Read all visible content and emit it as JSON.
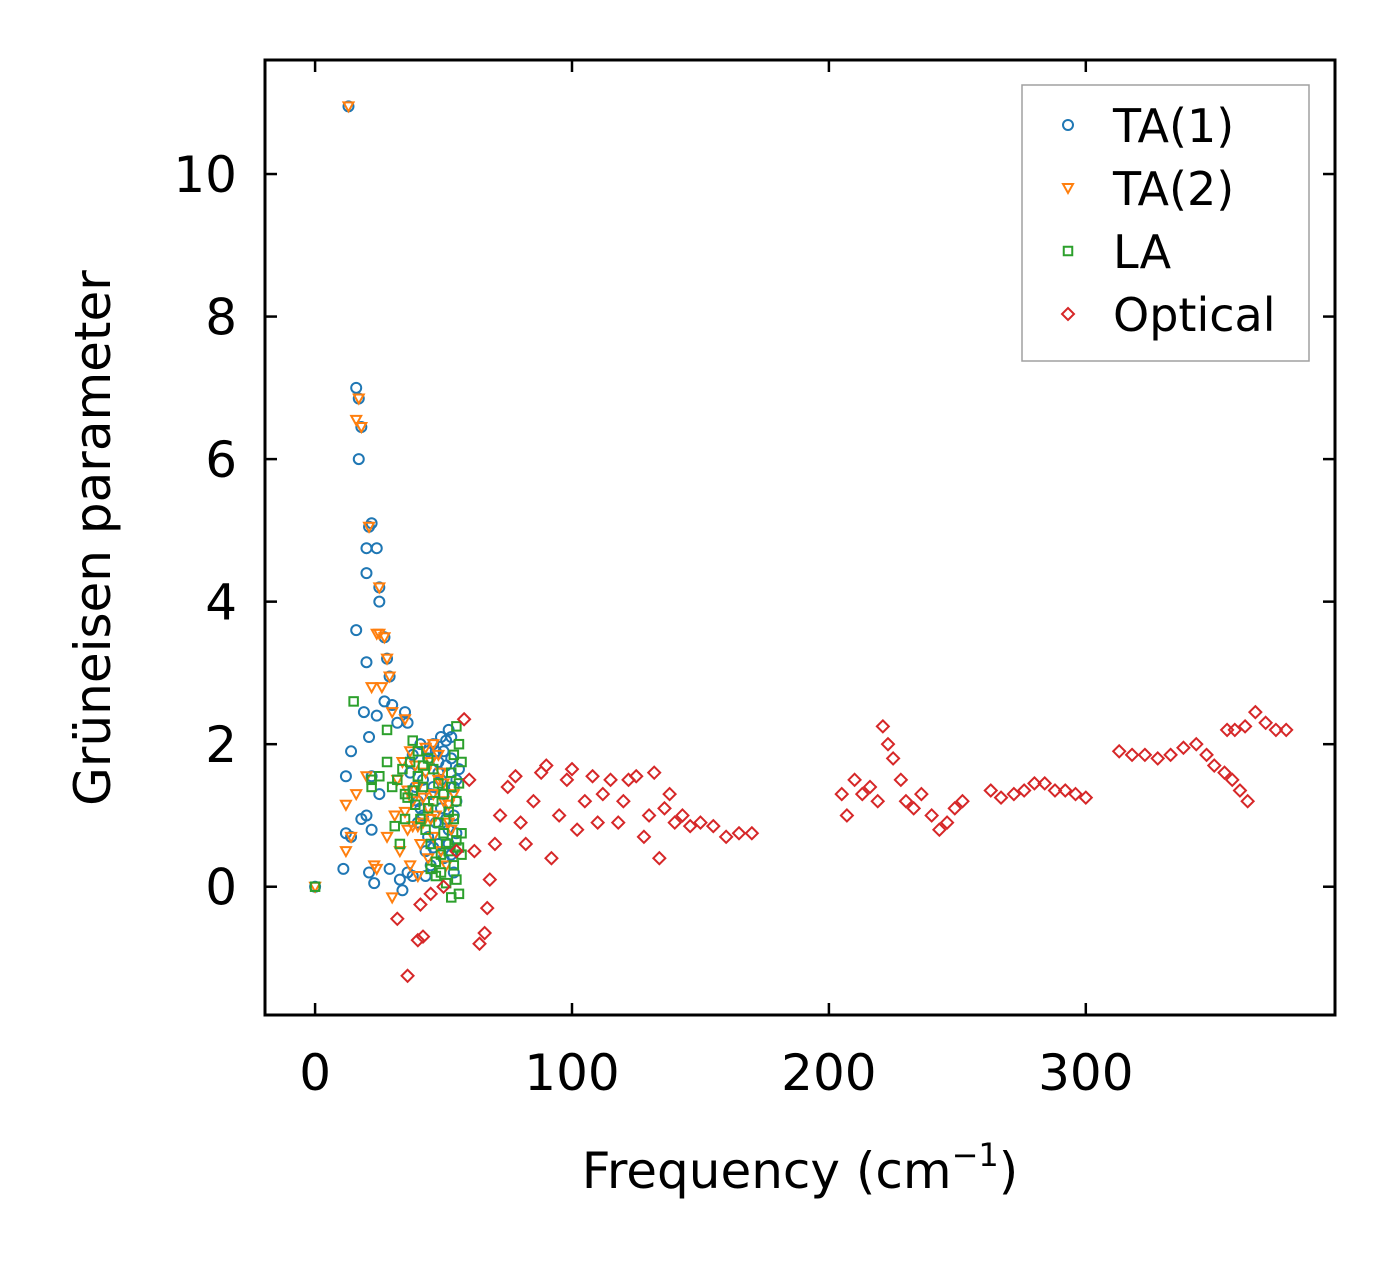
{
  "chart_data": {
    "type": "scatter",
    "title": "",
    "xlabel": "Frequency (cm",
    "xlabel_sup": "−1",
    "xlabel_close": ")",
    "ylabel": "Grüneisen parameter",
    "xlim": [
      -19.5,
      397
    ],
    "ylim": [
      -1.8,
      11.6
    ],
    "x_ticks": [
      0,
      100,
      200,
      300
    ],
    "x_tick_labels": [
      "0",
      "100",
      "200",
      "300"
    ],
    "y_ticks": [
      0,
      2,
      4,
      6,
      8,
      10
    ],
    "y_tick_labels": [
      "0",
      "2",
      "4",
      "6",
      "8",
      "10"
    ],
    "grid": false,
    "legend_position": "top-right",
    "series": [
      {
        "name": "TA(1)",
        "color": "#1f77b4",
        "marker": "circle",
        "points": [
          [
            0,
            0
          ],
          [
            13,
            10.95
          ],
          [
            16,
            7.0
          ],
          [
            17,
            6.85
          ],
          [
            18,
            6.45
          ],
          [
            17,
            6.0
          ],
          [
            21,
            5.05
          ],
          [
            22,
            5.1
          ],
          [
            20,
            4.75
          ],
          [
            24,
            4.75
          ],
          [
            20,
            4.4
          ],
          [
            25,
            4.2
          ],
          [
            25,
            4.0
          ],
          [
            16,
            3.6
          ],
          [
            27,
            3.5
          ],
          [
            20,
            3.15
          ],
          [
            28,
            3.2
          ],
          [
            29,
            2.95
          ],
          [
            27,
            2.6
          ],
          [
            30,
            2.55
          ],
          [
            19,
            2.45
          ],
          [
            24,
            2.4
          ],
          [
            32,
            2.3
          ],
          [
            35,
            2.45
          ],
          [
            36,
            2.3
          ],
          [
            14,
            1.9
          ],
          [
            21,
            2.1
          ],
          [
            12,
            1.55
          ],
          [
            22,
            1.55
          ],
          [
            20,
            1.0
          ],
          [
            18,
            0.95
          ],
          [
            25,
            1.3
          ],
          [
            12,
            0.75
          ],
          [
            14,
            0.7
          ],
          [
            22,
            0.8
          ],
          [
            11,
            0.25
          ],
          [
            21,
            0.2
          ],
          [
            23,
            0.05
          ],
          [
            29,
            0.25
          ],
          [
            33,
            0.1
          ],
          [
            34,
            -0.05
          ],
          [
            36,
            0.2
          ],
          [
            38,
            0.15
          ],
          [
            40,
            1.2
          ],
          [
            42,
            1.5
          ],
          [
            44,
            1.8
          ],
          [
            46,
            2.0
          ],
          [
            48,
            1.6
          ],
          [
            50,
            1.9
          ],
          [
            52,
            2.2
          ],
          [
            54,
            1.4
          ],
          [
            38,
            1.85
          ],
          [
            41,
            2.0
          ],
          [
            45,
            1.3
          ],
          [
            47,
            0.9
          ],
          [
            49,
            1.1
          ],
          [
            51,
            1.7
          ],
          [
            53,
            2.1
          ],
          [
            55,
            1.5
          ],
          [
            43,
            0.5
          ],
          [
            45,
            0.3
          ],
          [
            48,
            0.6
          ],
          [
            50,
            0.4
          ],
          [
            52,
            0.8
          ],
          [
            54,
            0.2
          ],
          [
            40,
            0.9
          ],
          [
            42,
            1.0
          ],
          [
            46,
            1.4
          ],
          [
            49,
            1.5
          ],
          [
            51,
            2.05
          ],
          [
            53,
            1.8
          ],
          [
            55,
            1.2
          ],
          [
            37,
            1.6
          ],
          [
            39,
            1.4
          ],
          [
            44,
            0.7
          ],
          [
            47,
            1.9
          ],
          [
            50,
            1.3
          ],
          [
            52,
            0.6
          ],
          [
            54,
            1.0
          ],
          [
            43,
            0.15
          ],
          [
            46,
            0.55
          ],
          [
            48,
            1.75
          ],
          [
            51,
            0.95
          ],
          [
            53,
            0.45
          ],
          [
            56,
            1.65
          ],
          [
            41,
            1.1
          ],
          [
            44,
            1.9
          ],
          [
            49,
            2.1
          ],
          [
            55,
            0.75
          ]
        ]
      },
      {
        "name": "TA(2)",
        "color": "#ff7f0e",
        "marker": "triangle-down",
        "points": [
          [
            0,
            0
          ],
          [
            13,
            10.95
          ],
          [
            16,
            6.55
          ],
          [
            17,
            6.85
          ],
          [
            18,
            6.45
          ],
          [
            21,
            5.05
          ],
          [
            25,
            4.2
          ],
          [
            24,
            3.55
          ],
          [
            25,
            3.55
          ],
          [
            27,
            3.5
          ],
          [
            28,
            3.2
          ],
          [
            29,
            2.95
          ],
          [
            22,
            2.8
          ],
          [
            26,
            2.8
          ],
          [
            30,
            2.45
          ],
          [
            35,
            2.35
          ],
          [
            12,
            1.15
          ],
          [
            16,
            1.3
          ],
          [
            20,
            1.55
          ],
          [
            12,
            0.5
          ],
          [
            14,
            0.7
          ],
          [
            23,
            0.3
          ],
          [
            24,
            0.25
          ],
          [
            28,
            0.7
          ],
          [
            31,
            1.0
          ],
          [
            30,
            -0.15
          ],
          [
            33,
            0.5
          ],
          [
            36,
            0.8
          ],
          [
            38,
            0.85
          ],
          [
            40,
            0.85
          ],
          [
            42,
            0.9
          ],
          [
            44,
            1.1
          ],
          [
            46,
            1.3
          ],
          [
            48,
            1.5
          ],
          [
            38,
            1.2
          ],
          [
            40,
            1.4
          ],
          [
            43,
            1.6
          ],
          [
            45,
            1.75
          ],
          [
            47,
            1.0
          ],
          [
            50,
            1.2
          ],
          [
            52,
            0.9
          ],
          [
            41,
            0.6
          ],
          [
            44,
            0.4
          ],
          [
            46,
            0.7
          ],
          [
            49,
            0.5
          ],
          [
            51,
            0.3
          ],
          [
            53,
            0.8
          ],
          [
            37,
            1.9
          ],
          [
            39,
            1.7
          ],
          [
            42,
            1.25
          ],
          [
            45,
            0.95
          ],
          [
            48,
            1.85
          ],
          [
            50,
            1.45
          ],
          [
            52,
            1.15
          ],
          [
            35,
            1.05
          ],
          [
            37,
            0.3
          ],
          [
            40,
            0.15
          ],
          [
            43,
            1.95
          ],
          [
            46,
            2.0
          ],
          [
            49,
            1.6
          ],
          [
            54,
            1.3
          ],
          [
            32,
            1.5
          ],
          [
            34,
            1.75
          ],
          [
            36,
            1.35
          ]
        ]
      },
      {
        "name": "LA",
        "color": "#2ca02c",
        "marker": "square",
        "points": [
          [
            0,
            0
          ],
          [
            15,
            2.6
          ],
          [
            28,
            2.2
          ],
          [
            28,
            1.75
          ],
          [
            22,
            1.5
          ],
          [
            22,
            1.4
          ],
          [
            25,
            1.55
          ],
          [
            30,
            1.4
          ],
          [
            32,
            1.5
          ],
          [
            35,
            1.3
          ],
          [
            34,
            1.65
          ],
          [
            37,
            1.75
          ],
          [
            38,
            2.05
          ],
          [
            40,
            1.55
          ],
          [
            42,
            1.4
          ],
          [
            44,
            1.1
          ],
          [
            46,
            1.2
          ],
          [
            48,
            0.9
          ],
          [
            50,
            0.75
          ],
          [
            52,
            0.5
          ],
          [
            54,
            0.3
          ],
          [
            55,
            0.1
          ],
          [
            56,
            -0.1
          ],
          [
            53,
            -0.15
          ],
          [
            51,
            0.05
          ],
          [
            49,
            0.2
          ],
          [
            47,
            0.35
          ],
          [
            45,
            0.6
          ],
          [
            43,
            0.8
          ],
          [
            41,
            0.95
          ],
          [
            39,
            1.15
          ],
          [
            36,
            1.25
          ],
          [
            55,
            2.25
          ],
          [
            56,
            2.0
          ],
          [
            54,
            1.85
          ],
          [
            53,
            1.6
          ],
          [
            56,
            1.45
          ],
          [
            55,
            1.2
          ],
          [
            54,
            0.95
          ],
          [
            52,
            1.05
          ],
          [
            50,
            1.3
          ],
          [
            48,
            1.45
          ],
          [
            46,
            1.65
          ],
          [
            44,
            1.8
          ],
          [
            42,
            1.7
          ],
          [
            40,
            1.9
          ],
          [
            38,
            1.35
          ],
          [
            35,
            0.95
          ],
          [
            33,
            0.6
          ],
          [
            31,
            0.85
          ],
          [
            57,
            0.75
          ],
          [
            57,
            1.75
          ],
          [
            57,
            0.45
          ],
          [
            56,
            0.55
          ],
          [
            55,
            0.65
          ],
          [
            45,
            0.25
          ],
          [
            47,
            0.15
          ],
          [
            49,
            0.45
          ],
          [
            51,
            0.6
          ],
          [
            53,
            1.4
          ]
        ]
      },
      {
        "name": "Optical",
        "color": "#d62728",
        "marker": "diamond",
        "points": [
          [
            32,
            -0.45
          ],
          [
            36,
            -1.25
          ],
          [
            40,
            -0.75
          ],
          [
            41,
            -0.25
          ],
          [
            42,
            -0.7
          ],
          [
            45,
            -0.1
          ],
          [
            50,
            0.0
          ],
          [
            55,
            0.5
          ],
          [
            58,
            2.35
          ],
          [
            60,
            1.5
          ],
          [
            62,
            0.5
          ],
          [
            64,
            -0.8
          ],
          [
            66,
            -0.65
          ],
          [
            67,
            -0.3
          ],
          [
            68,
            0.1
          ],
          [
            70,
            0.6
          ],
          [
            72,
            1.0
          ],
          [
            75,
            1.4
          ],
          [
            78,
            1.55
          ],
          [
            80,
            0.9
          ],
          [
            82,
            0.6
          ],
          [
            85,
            1.2
          ],
          [
            88,
            1.6
          ],
          [
            90,
            1.7
          ],
          [
            92,
            0.4
          ],
          [
            95,
            1.0
          ],
          [
            98,
            1.5
          ],
          [
            100,
            1.65
          ],
          [
            102,
            0.8
          ],
          [
            105,
            1.2
          ],
          [
            108,
            1.55
          ],
          [
            110,
            0.9
          ],
          [
            112,
            1.3
          ],
          [
            115,
            1.5
          ],
          [
            118,
            0.9
          ],
          [
            120,
            1.2
          ],
          [
            122,
            1.5
          ],
          [
            125,
            1.55
          ],
          [
            128,
            0.7
          ],
          [
            130,
            1.0
          ],
          [
            132,
            1.6
          ],
          [
            134,
            0.4
          ],
          [
            136,
            1.1
          ],
          [
            138,
            1.3
          ],
          [
            140,
            0.9
          ],
          [
            143,
            1.0
          ],
          [
            146,
            0.85
          ],
          [
            150,
            0.9
          ],
          [
            155,
            0.85
          ],
          [
            160,
            0.7
          ],
          [
            165,
            0.75
          ],
          [
            170,
            0.75
          ],
          [
            205,
            1.3
          ],
          [
            207,
            1.0
          ],
          [
            210,
            1.5
          ],
          [
            213,
            1.3
          ],
          [
            216,
            1.4
          ],
          [
            219,
            1.2
          ],
          [
            221,
            2.25
          ],
          [
            223,
            2.0
          ],
          [
            225,
            1.8
          ],
          [
            228,
            1.5
          ],
          [
            230,
            1.2
          ],
          [
            233,
            1.1
          ],
          [
            236,
            1.3
          ],
          [
            240,
            1.0
          ],
          [
            243,
            0.8
          ],
          [
            246,
            0.9
          ],
          [
            249,
            1.1
          ],
          [
            252,
            1.2
          ],
          [
            263,
            1.35
          ],
          [
            267,
            1.25
          ],
          [
            272,
            1.3
          ],
          [
            276,
            1.35
          ],
          [
            280,
            1.45
          ],
          [
            284,
            1.45
          ],
          [
            288,
            1.35
          ],
          [
            292,
            1.35
          ],
          [
            296,
            1.3
          ],
          [
            300,
            1.25
          ],
          [
            313,
            1.9
          ],
          [
            318,
            1.85
          ],
          [
            323,
            1.85
          ],
          [
            328,
            1.8
          ],
          [
            333,
            1.85
          ],
          [
            338,
            1.95
          ],
          [
            343,
            2.0
          ],
          [
            347,
            1.85
          ],
          [
            350,
            1.7
          ],
          [
            354,
            1.6
          ],
          [
            357,
            1.5
          ],
          [
            360,
            1.35
          ],
          [
            363,
            1.2
          ],
          [
            355,
            2.2
          ],
          [
            358,
            2.2
          ],
          [
            362,
            2.25
          ],
          [
            366,
            2.45
          ],
          [
            370,
            2.3
          ],
          [
            374,
            2.2
          ],
          [
            378,
            2.2
          ]
        ]
      }
    ]
  }
}
